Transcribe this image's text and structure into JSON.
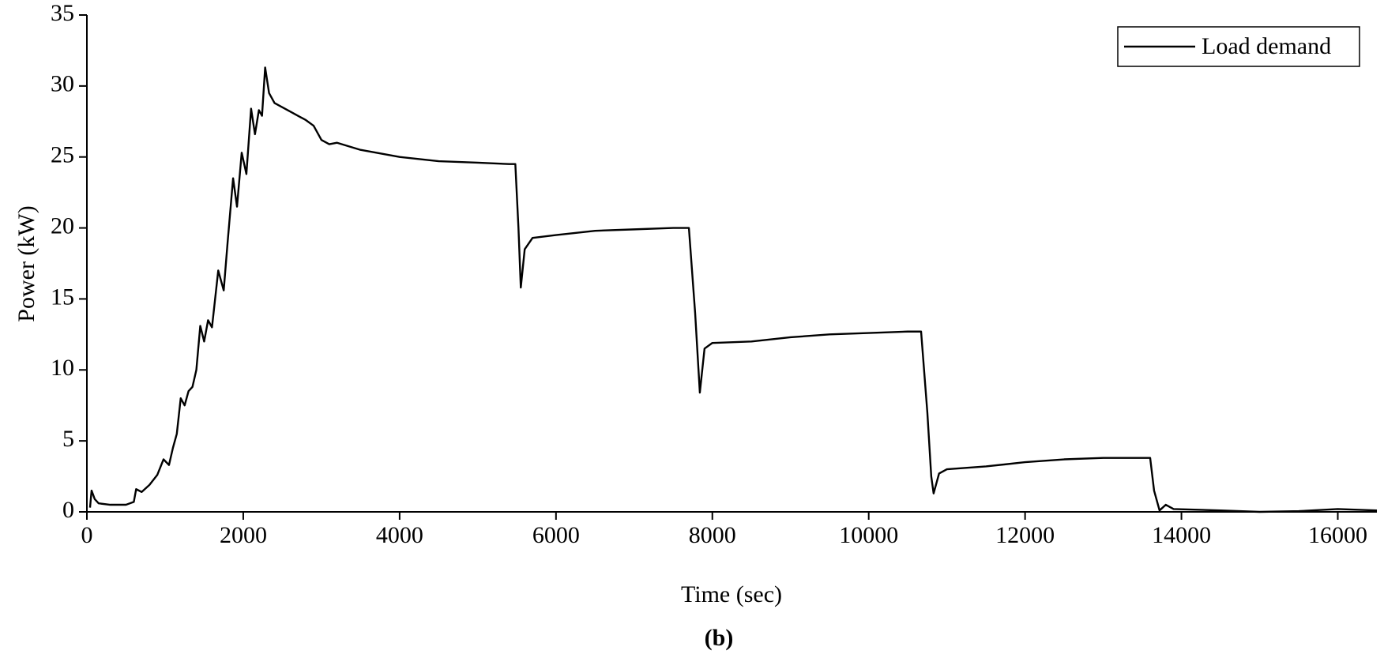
{
  "chart_data": {
    "type": "line",
    "x_label": "Time (sec)",
    "y_label": "Power (kW)",
    "caption": "(b)",
    "xlim": [
      0,
      16500
    ],
    "xticks": [
      0,
      2000,
      4000,
      6000,
      8000,
      10000,
      12000,
      14000,
      16000
    ],
    "ylim": [
      0,
      35
    ],
    "yticks": [
      0,
      5,
      10,
      15,
      20,
      25,
      30,
      35
    ],
    "legend": "upper right",
    "series": [
      {
        "name": "Load demand",
        "color": "#000000",
        "x": [
          40,
          60,
          100,
          150,
          300,
          500,
          600,
          630,
          700,
          800,
          900,
          980,
          1050,
          1100,
          1150,
          1200,
          1250,
          1300,
          1350,
          1400,
          1450,
          1500,
          1550,
          1600,
          1680,
          1750,
          1800,
          1870,
          1920,
          1980,
          2040,
          2100,
          2150,
          2200,
          2240,
          2280,
          2330,
          2400,
          2600,
          2800,
          2900,
          3000,
          3100,
          3200,
          3500,
          4000,
          4500,
          5000,
          5400,
          5480,
          5520,
          5550,
          5600,
          5700,
          6000,
          6500,
          7000,
          7500,
          7700,
          7780,
          7840,
          7900,
          8000,
          8500,
          9000,
          9500,
          10000,
          10500,
          10670,
          10750,
          10800,
          10830,
          10900,
          11000,
          11500,
          12000,
          12500,
          13000,
          13500,
          13600,
          13650,
          13720,
          13800,
          13900,
          14500,
          15000,
          15500,
          16000,
          16500
        ],
        "values": [
          0.3,
          1.5,
          0.9,
          0.6,
          0.5,
          0.5,
          0.7,
          1.6,
          1.4,
          1.9,
          2.6,
          3.7,
          3.3,
          4.5,
          5.5,
          8.0,
          7.5,
          8.5,
          8.8,
          10,
          13.1,
          12.0,
          13.5,
          13.0,
          17.0,
          15.6,
          19,
          23.5,
          21.5,
          25.3,
          23.8,
          28.4,
          26.6,
          28.3,
          27.9,
          31.3,
          29.5,
          28.8,
          28.2,
          27.6,
          27.2,
          26.2,
          25.9,
          26.0,
          25.5,
          25.0,
          24.7,
          24.6,
          24.5,
          24.5,
          20,
          15.8,
          18.5,
          19.3,
          19.5,
          19.8,
          19.9,
          20.0,
          20.0,
          14,
          8.4,
          11.5,
          11.9,
          12.0,
          12.3,
          12.5,
          12.6,
          12.7,
          12.7,
          7,
          2.5,
          1.3,
          2.7,
          3.0,
          3.2,
          3.5,
          3.7,
          3.8,
          3.8,
          3.8,
          1.5,
          0.1,
          0.5,
          0.2,
          0.1,
          0.0,
          0.05,
          0.2,
          0.1
        ]
      }
    ]
  }
}
